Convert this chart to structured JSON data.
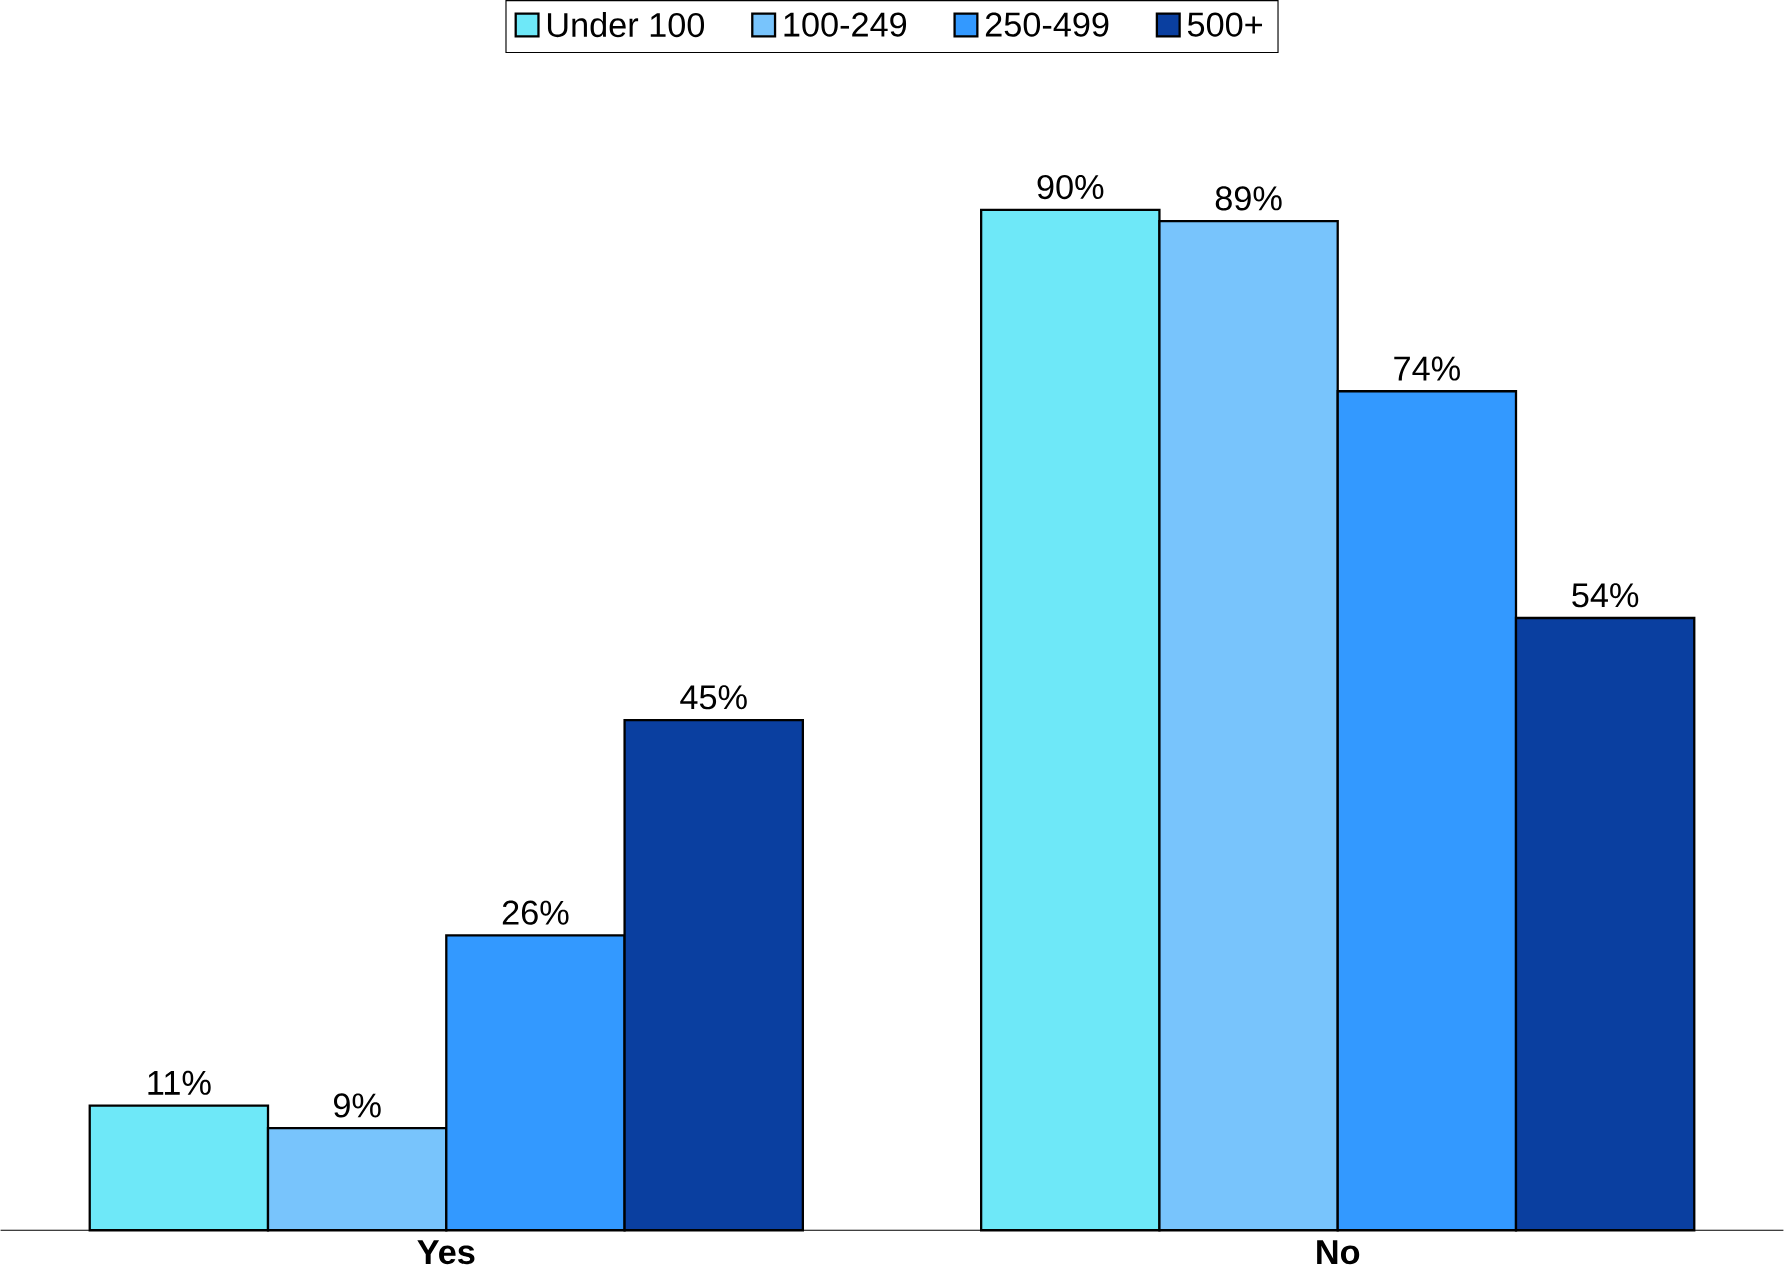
{
  "chart_data": {
    "type": "bar",
    "categories": [
      "Yes",
      "No"
    ],
    "series": [
      {
        "name": "Under 100",
        "color": "#6ee8f8",
        "values": [
          11,
          90
        ],
        "value_labels": [
          "11%",
          "90%"
        ]
      },
      {
        "name": "100-249",
        "color": "#78c4fc",
        "values": [
          9,
          89
        ],
        "value_labels": [
          "9%",
          "89%"
        ]
      },
      {
        "name": "250-499",
        "color": "#3399ff",
        "values": [
          26,
          74
        ],
        "value_labels": [
          "26%",
          "74%"
        ]
      },
      {
        "name": "500+",
        "color": "#0a3fa0",
        "values": [
          45,
          54
        ],
        "value_labels": [
          "45%",
          "54%"
        ]
      }
    ],
    "legend": "top"
  }
}
